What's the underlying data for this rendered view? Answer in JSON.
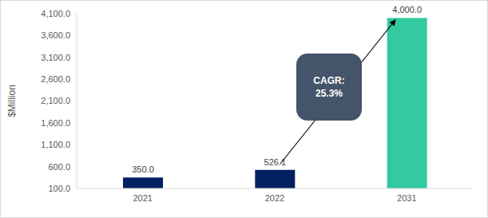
{
  "chart_data": {
    "type": "bar",
    "categories": [
      "2021",
      "2022",
      "2031"
    ],
    "values": [
      350.0,
      526.1,
      4000.0
    ],
    "value_labels": [
      "350.0",
      "526.1",
      "4,000.0"
    ],
    "colors": [
      "#002060",
      "#002060",
      "#33c9a1"
    ],
    "ylabel": "$Million",
    "ylim": [
      100,
      4100
    ],
    "yticks": [
      {
        "value": 100,
        "label": "100.0"
      },
      {
        "value": 600,
        "label": "600.0"
      },
      {
        "value": 1100,
        "label": "1,100.0"
      },
      {
        "value": 1600,
        "label": "1,600.0"
      },
      {
        "value": 2100,
        "label": "2,100.0"
      },
      {
        "value": 2600,
        "label": "2,600.0"
      },
      {
        "value": 3100,
        "label": "3,100.0"
      },
      {
        "value": 3600,
        "label": "3,600.0"
      },
      {
        "value": 4100,
        "label": "4,100.0"
      }
    ],
    "annotations": [
      "CAGR: 25.3%"
    ],
    "grid": false,
    "data_labels": true
  }
}
